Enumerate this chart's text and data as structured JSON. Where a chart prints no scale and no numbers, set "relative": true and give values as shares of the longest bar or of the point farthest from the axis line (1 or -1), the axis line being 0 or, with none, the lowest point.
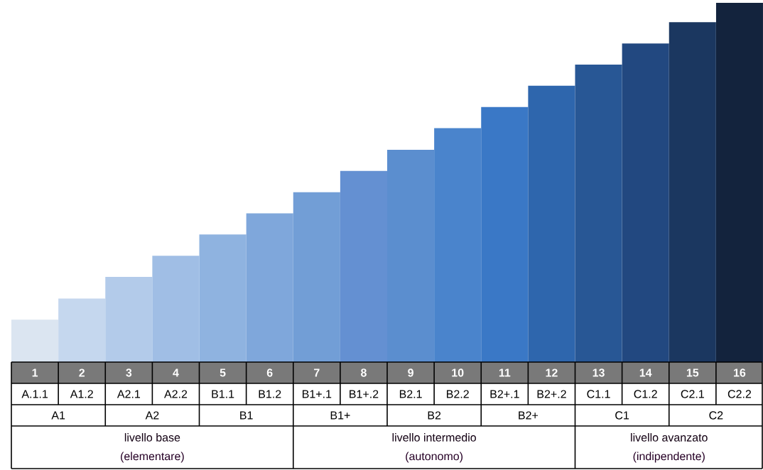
{
  "chart_data": {
    "type": "bar",
    "relative": true,
    "categories": [
      "1",
      "2",
      "3",
      "4",
      "5",
      "6",
      "7",
      "8",
      "9",
      "10",
      "11",
      "12",
      "13",
      "14",
      "15",
      "16"
    ],
    "values": [
      0.118,
      0.177,
      0.237,
      0.296,
      0.355,
      0.414,
      0.473,
      0.532,
      0.591,
      0.651,
      0.71,
      0.769,
      0.828,
      0.887,
      0.946,
      1
    ],
    "colors": [
      "#dbe5f1",
      "#c5d7ee",
      "#b3cbea",
      "#a0bee5",
      "#8fb3e0",
      "#7fa7db",
      "#729ed6",
      "#6490d2",
      "#5b8ecf",
      "#4a84cc",
      "#3a78c6",
      "#2e66ad",
      "#285795",
      "#224880",
      "#1b3760",
      "#13233d"
    ],
    "annotations": [
      "A.1.1",
      "A1.2",
      "A2.1",
      "A2.2",
      "B1.1",
      "B1.2",
      "B1+.1",
      "B1+.2",
      "B2.1",
      "B2.2",
      "B2+.1",
      "B2+.2",
      "C1.1",
      "C1.2",
      "C2.1",
      "C2.2",
      "A1",
      "A2",
      "B1",
      "B1+",
      "B2",
      "B2+",
      "C1",
      "C2",
      "livello base",
      "(elementare)",
      "livello intermedio",
      "(autonomo)",
      "livello avanzato",
      "(indipendente)"
    ]
  }
}
